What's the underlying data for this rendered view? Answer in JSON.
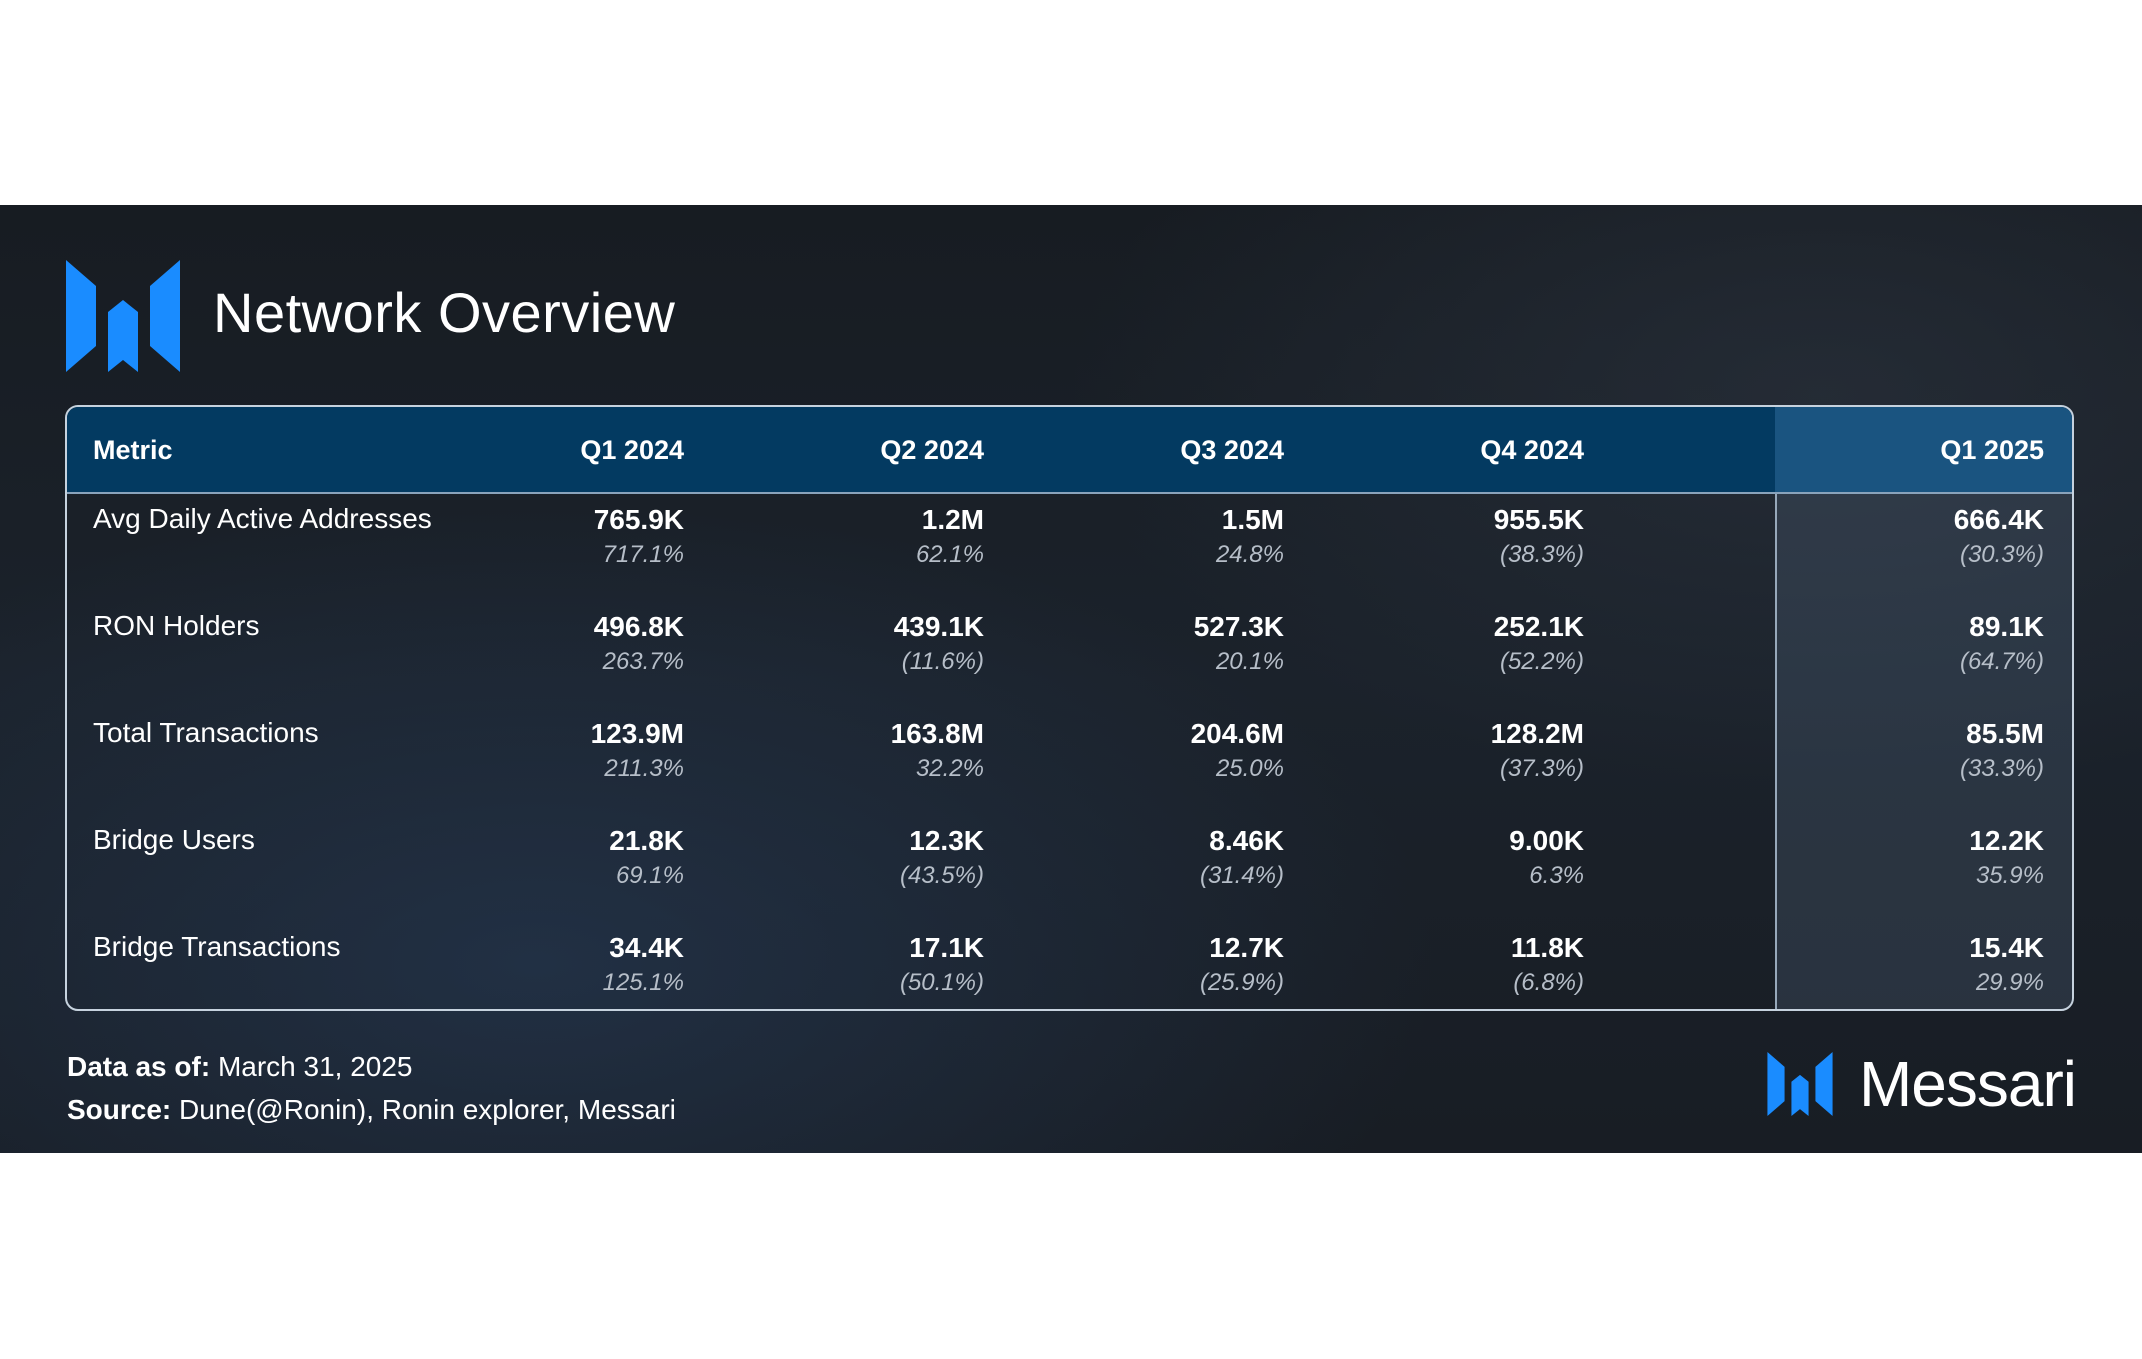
{
  "header": {
    "title": "Network Overview",
    "logo_icon": "messari-m-icon",
    "accent_color": "#1a8cff"
  },
  "table": {
    "columns": [
      "Metric",
      "Q1 2024",
      "Q2 2024",
      "Q3 2024",
      "Q4 2024",
      "Q1 2025"
    ],
    "rows": [
      {
        "metric": "Avg Daily Active Addresses",
        "cells": [
          {
            "value": "765.9K",
            "change": "717.1%"
          },
          {
            "value": "1.2M",
            "change": "62.1%"
          },
          {
            "value": "1.5M",
            "change": "24.8%"
          },
          {
            "value": "955.5K",
            "change": "(38.3%)"
          },
          {
            "value": "666.4K",
            "change": "(30.3%)"
          }
        ]
      },
      {
        "metric": "RON Holders",
        "cells": [
          {
            "value": "496.8K",
            "change": "263.7%"
          },
          {
            "value": "439.1K",
            "change": "(11.6%)"
          },
          {
            "value": "527.3K",
            "change": "20.1%"
          },
          {
            "value": "252.1K",
            "change": "(52.2%)"
          },
          {
            "value": "89.1K",
            "change": "(64.7%)"
          }
        ]
      },
      {
        "metric": "Total Transactions",
        "cells": [
          {
            "value": "123.9M",
            "change": "211.3%"
          },
          {
            "value": "163.8M",
            "change": "32.2%"
          },
          {
            "value": "204.6M",
            "change": "25.0%"
          },
          {
            "value": "128.2M",
            "change": "(37.3%)"
          },
          {
            "value": "85.5M",
            "change": "(33.3%)"
          }
        ]
      },
      {
        "metric": "Bridge Users",
        "cells": [
          {
            "value": "21.8K",
            "change": "69.1%"
          },
          {
            "value": "12.3K",
            "change": "(43.5%)"
          },
          {
            "value": "8.46K",
            "change": "(31.4%)"
          },
          {
            "value": "9.00K",
            "change": "6.3%"
          },
          {
            "value": "12.2K",
            "change": "35.9%"
          }
        ]
      },
      {
        "metric": "Bridge Transactions",
        "cells": [
          {
            "value": "34.4K",
            "change": "125.1%"
          },
          {
            "value": "17.1K",
            "change": "(50.1%)"
          },
          {
            "value": "12.7K",
            "change": "(25.9%)"
          },
          {
            "value": "11.8K",
            "change": "(6.8%)"
          },
          {
            "value": "15.4K",
            "change": "29.9%"
          }
        ]
      }
    ]
  },
  "footer": {
    "data_as_of_label": "Data as of:",
    "data_as_of_value": "March 31, 2025",
    "source_label": "Source:",
    "source_value": "Dune(@Ronin), Ronin explorer, Messari"
  },
  "brand": {
    "name": "Messari",
    "logo_icon": "messari-m-icon"
  }
}
